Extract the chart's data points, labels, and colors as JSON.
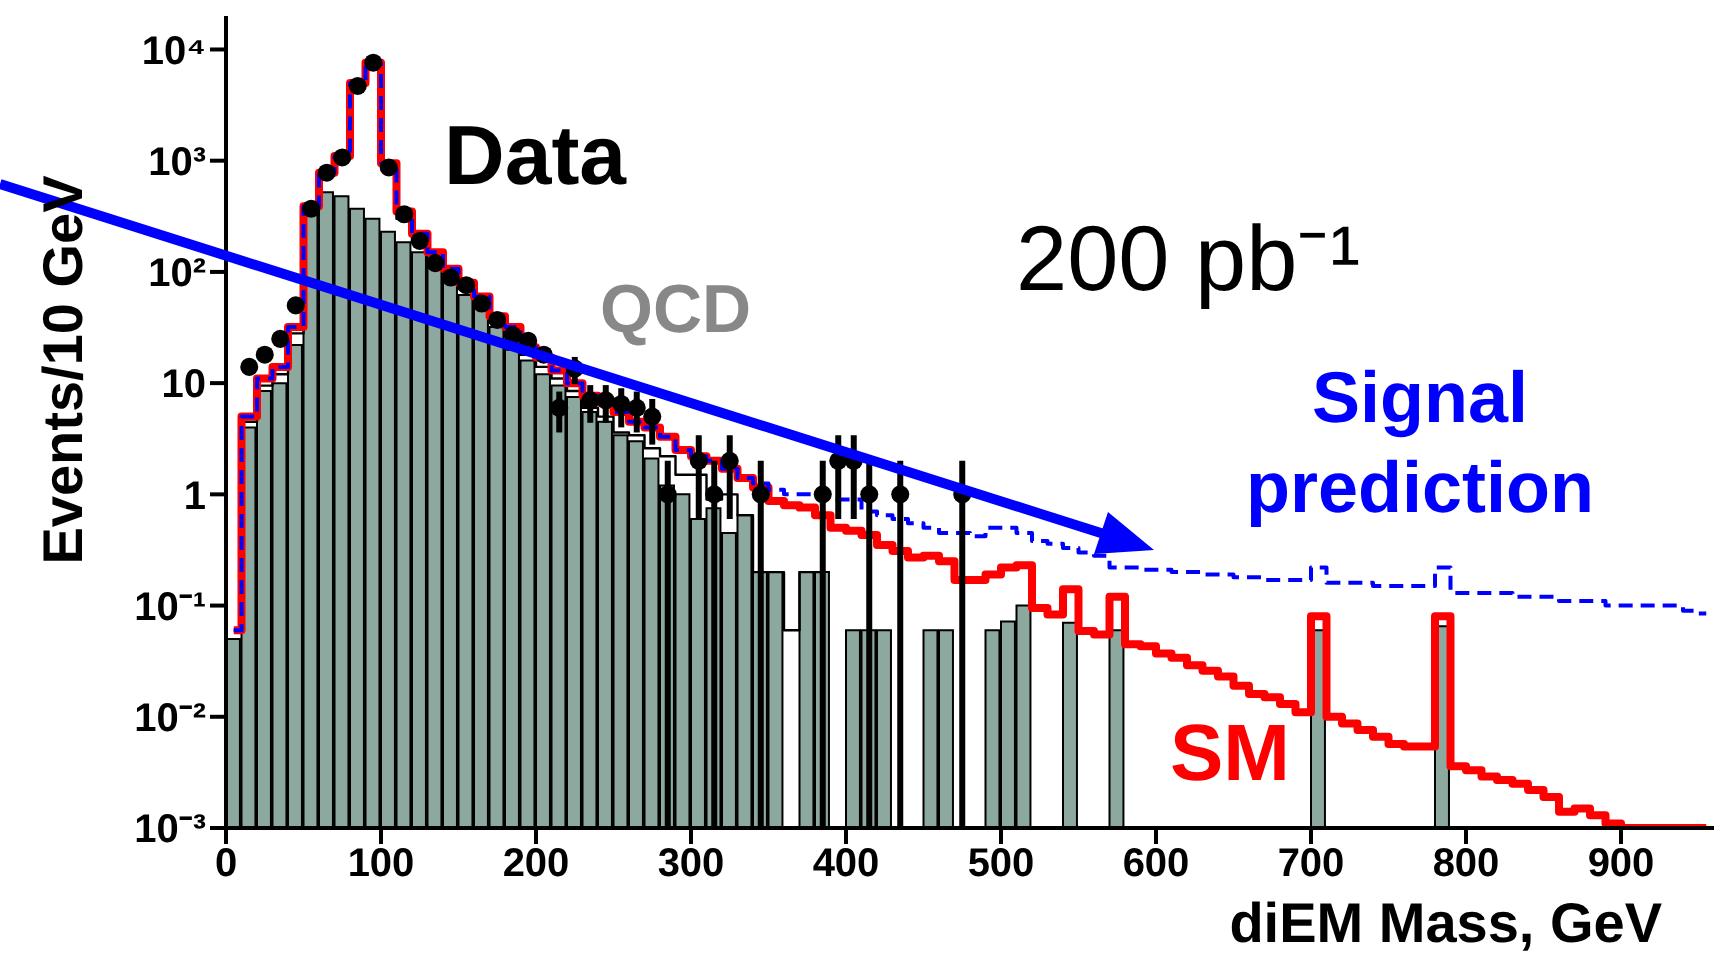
{
  "chart_data": {
    "type": "histogram",
    "xlabel": "diEM Mass, GeV",
    "ylabel": "Events/10 GeV",
    "annotations": [
      "200 pb⁻¹"
    ],
    "log": "y",
    "xlim": [
      0,
      960
    ],
    "ylim": [
      0.001,
      20000
    ],
    "xticks": [
      0,
      100,
      200,
      300,
      400,
      500,
      600,
      700,
      800,
      900
    ],
    "yticks": [
      {
        "value": 0.001,
        "label": "10⁻³"
      },
      {
        "value": 0.01,
        "label": "10⁻²"
      },
      {
        "value": 0.1,
        "label": "10⁻¹"
      },
      1,
      10,
      {
        "value": 100,
        "label": "10²"
      },
      {
        "value": 1000,
        "label": "10³"
      },
      {
        "value": 10000,
        "label": "10⁴"
      }
    ],
    "bins": [
      0,
      10,
      20,
      30,
      40,
      50,
      60,
      70,
      80,
      90,
      100,
      110,
      120,
      130,
      140,
      150,
      160,
      170,
      180,
      190,
      200,
      210,
      220,
      230,
      240,
      250,
      260,
      270,
      280,
      290,
      300,
      310,
      320,
      330,
      340,
      350,
      360,
      370,
      380,
      390,
      400,
      410,
      420,
      430,
      440,
      450,
      460,
      470,
      480,
      490,
      500,
      510,
      520,
      530,
      540,
      550,
      560,
      570,
      580,
      590,
      600,
      610,
      620,
      630,
      640,
      650,
      660,
      670,
      680,
      690,
      700,
      710,
      720,
      730,
      740,
      750,
      760,
      770,
      780,
      790,
      800,
      810,
      820,
      830,
      840,
      850,
      860,
      870,
      880,
      890,
      900,
      910,
      920,
      930,
      940,
      950,
      960
    ],
    "series": [
      {
        "name": "QCD",
        "type": "histogram",
        "color": "#8ca89f",
        "values": [
          0.05,
          4,
          8.5,
          10,
          22,
          350,
          520,
          480,
          370,
          300,
          230,
          185,
          150,
          123,
          85,
          62,
          48,
          32,
          20,
          16,
          12,
          9.5,
          7.5,
          5.5,
          4.5,
          3.4,
          3.0,
          2.1,
          1.2,
          1.0,
          0.6,
          0.75,
          0.45,
          0.65,
          0.2,
          0.2,
          null,
          0.2,
          0.2,
          null,
          0.06,
          0.06,
          0.06,
          null,
          null,
          0.06,
          0.06,
          null,
          null,
          0.06,
          0.072,
          0.1,
          null,
          null,
          0.07,
          null,
          null,
          0.06,
          null,
          null,
          null,
          null,
          null,
          null,
          null,
          null,
          null,
          null,
          null,
          null,
          0.06,
          null,
          null,
          null,
          null,
          null,
          null,
          null,
          0.065,
          null,
          null,
          null,
          null,
          null,
          null,
          null,
          null,
          null,
          null,
          null,
          null,
          null,
          null,
          null,
          null,
          null
        ]
      },
      {
        "type": "step",
        "color": "#000000",
        "x": [
          5,
          15,
          25,
          35,
          45,
          55,
          65,
          75,
          85,
          95,
          105,
          115,
          125,
          135,
          145,
          155,
          165,
          175,
          185,
          195,
          205,
          215,
          225,
          235,
          245,
          255,
          265,
          275,
          285,
          295,
          305,
          315,
          325,
          335,
          345,
          355,
          365,
          375,
          385
        ],
        "values": [
          0.06,
          4.5,
          9.5,
          12,
          28,
          370,
          750,
          1050,
          4800,
          7300,
          900,
          300,
          190,
          125,
          95,
          70,
          52,
          35,
          27,
          18,
          14,
          11,
          8.5,
          6,
          5,
          3.6,
          3.4,
          2.6,
          2.2,
          1.5,
          1.5,
          0.9,
          1.0,
          0.65,
          0.2,
          0.2,
          0.06,
          0.2,
          0.2
        ]
      },
      {
        "name": "SM",
        "type": "step",
        "color": "#ff0000",
        "x": [
          5,
          15,
          25,
          35,
          45,
          55,
          65,
          75,
          85,
          95,
          105,
          115,
          125,
          135,
          145,
          155,
          165,
          175,
          185,
          195,
          205,
          215,
          225,
          235,
          245,
          255,
          265,
          275,
          285,
          295,
          305,
          315,
          325,
          335,
          345,
          355,
          365,
          375,
          385,
          395,
          405,
          415,
          425,
          435,
          445,
          455,
          465,
          475,
          485,
          495,
          505,
          515,
          525,
          535,
          545,
          555,
          565,
          575,
          585,
          595,
          605,
          615,
          625,
          635,
          645,
          655,
          665,
          675,
          685,
          695,
          705,
          715,
          725,
          735,
          745,
          755,
          765,
          775,
          785,
          795,
          805,
          815,
          825,
          835,
          845,
          855,
          865,
          875,
          885,
          895,
          905,
          915,
          925,
          935,
          945,
          955
        ],
        "values": [
          0.06,
          5,
          11,
          14,
          32,
          390,
          780,
          1100,
          5000,
          7600,
          950,
          350,
          220,
          150,
          107,
          80,
          60,
          40,
          32,
          21,
          17,
          13,
          10,
          7.7,
          6.7,
          5.5,
          4.5,
          4,
          3.3,
          2.5,
          2.2,
          2,
          1.7,
          1.4,
          1.15,
          0.87,
          0.8,
          0.76,
          0.65,
          0.5,
          0.47,
          0.43,
          0.35,
          0.31,
          0.27,
          0.28,
          0.25,
          0.17,
          0.17,
          0.19,
          0.22,
          0.23,
          0.095,
          0.083,
          0.14,
          0.059,
          0.055,
          0.12,
          0.045,
          0.043,
          0.037,
          0.034,
          0.029,
          0.026,
          0.023,
          0.019,
          0.016,
          0.015,
          0.013,
          0.011,
          0.08,
          0.01,
          0.0087,
          0.0076,
          0.0066,
          0.0057,
          0.0054,
          0.0054,
          0.08,
          0.0036,
          0.0033,
          0.0029,
          0.0027,
          0.0025,
          0.0022,
          0.0019,
          0.0014,
          0.0015,
          0.0013,
          0.0011,
          0.001,
          0.001,
          0.001,
          0.001,
          0.001,
          0.001
        ]
      },
      {
        "name": "Signal prediction",
        "type": "step",
        "line_style": "dashed",
        "color": "#0000ff",
        "x": [
          5,
          15,
          25,
          35,
          45,
          55,
          65,
          75,
          85,
          95,
          105,
          115,
          125,
          135,
          145,
          155,
          165,
          175,
          185,
          195,
          205,
          215,
          225,
          235,
          245,
          255,
          265,
          275,
          285,
          295,
          305,
          315,
          325,
          335,
          345,
          355,
          365,
          375,
          385,
          395,
          405,
          415,
          425,
          435,
          445,
          455,
          465,
          475,
          485,
          495,
          505,
          515,
          525,
          535,
          545,
          555,
          565,
          575,
          585,
          595,
          605,
          615,
          625,
          635,
          645,
          655,
          665,
          675,
          685,
          695,
          705,
          715,
          725,
          735,
          745,
          755,
          765,
          775,
          785,
          795,
          805,
          815,
          825,
          835,
          845,
          855,
          865,
          875,
          885,
          895,
          905,
          915,
          925,
          935,
          945,
          955
        ],
        "values": [
          0.06,
          5,
          11,
          14,
          32,
          390,
          780,
          1100,
          5000,
          7600,
          950,
          350,
          220,
          150,
          107,
          80,
          60,
          40,
          32,
          21,
          17,
          13,
          10,
          7.7,
          6.7,
          5.5,
          4.5,
          4,
          3.3,
          2.5,
          2.2,
          2,
          1.7,
          1.4,
          1.25,
          1.1,
          1.0,
          1.0,
          0.95,
          0.9,
          0.9,
          0.7,
          0.65,
          0.6,
          0.55,
          0.5,
          0.45,
          0.45,
          0.42,
          0.5,
          0.5,
          0.45,
          0.38,
          0.36,
          0.33,
          0.3,
          0.28,
          0.22,
          0.22,
          0.21,
          0.21,
          0.2,
          0.2,
          0.19,
          0.19,
          0.18,
          0.18,
          0.17,
          0.17,
          0.17,
          0.22,
          0.16,
          0.16,
          0.16,
          0.15,
          0.15,
          0.15,
          0.15,
          0.22,
          0.13,
          0.13,
          0.13,
          0.13,
          0.12,
          0.12,
          0.12,
          0.11,
          0.11,
          0.11,
          0.1,
          0.1,
          0.1,
          0.1,
          0.1,
          0.09,
          0.085
        ]
      },
      {
        "name": "Data",
        "type": "scatter",
        "marker": "circle",
        "color": "#000000",
        "x": [
          15,
          25,
          35,
          45,
          55,
          65,
          75,
          85,
          95,
          105,
          115,
          125,
          135,
          145,
          155,
          165,
          175,
          185,
          195,
          205,
          215,
          225,
          235,
          245,
          255,
          265,
          275,
          285,
          305,
          315,
          325,
          345,
          385,
          395,
          405,
          415,
          435,
          475
        ],
        "values": [
          14,
          18,
          25,
          50,
          370,
          780,
          1070,
          4700,
          7600,
          870,
          330,
          190,
          120,
          89,
          76,
          52,
          37,
          27,
          24,
          18,
          6,
          13.5,
          7,
          7,
          6.5,
          6,
          5,
          1,
          2,
          1,
          2,
          1,
          1,
          2,
          2,
          1,
          1,
          1
        ],
        "errors": [
          null,
          null,
          null,
          null,
          null,
          null,
          null,
          null,
          null,
          null,
          null,
          null,
          null,
          null,
          null,
          null,
          null,
          null,
          null,
          null,
          2.4,
          3.7,
          2.6,
          2.6,
          2.5,
          2.4,
          2.2,
          [
            0.999,
            1
          ],
          [
            1.4,
            1.4
          ],
          [
            0.999,
            1
          ],
          [
            1.4,
            1.4
          ],
          [
            0.999,
            1
          ],
          [
            0.999,
            1
          ],
          [
            1.4,
            1.4
          ],
          [
            1.4,
            1.4
          ],
          [
            0.999,
            1
          ],
          [
            0.999,
            1
          ],
          [
            0.999,
            1
          ]
        ]
      }
    ]
  }
}
